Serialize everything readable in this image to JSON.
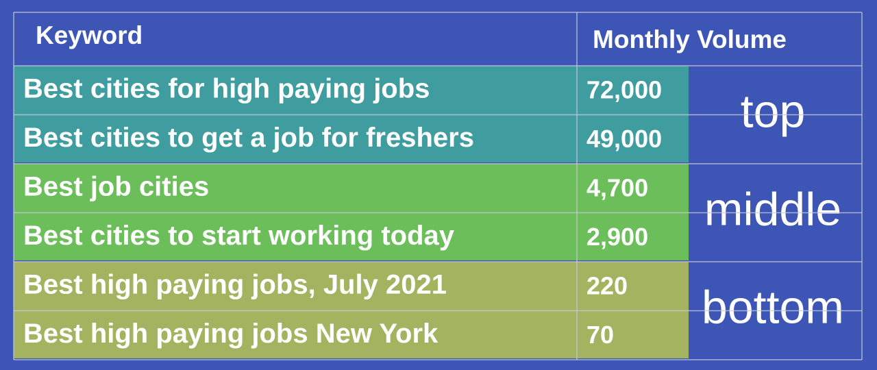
{
  "table": {
    "header": [
      "Keyword",
      "Monthly Volume"
    ],
    "groups": [
      {
        "label": "top",
        "rows": [
          [
            "Best cities for high paying jobs",
            "72,000"
          ],
          [
            "Best cities to get a job for freshers",
            "49,000"
          ]
        ]
      },
      {
        "label": "middle",
        "rows": [
          [
            "Best job cities",
            "4,700"
          ],
          [
            "Best cities to start working today",
            "2,900"
          ]
        ]
      },
      {
        "label": "bottom",
        "rows": [
          [
            "Best high paying jobs, July 2021",
            "220"
          ],
          [
            "Best high paying jobs New York",
            "70"
          ]
        ]
      }
    ]
  }
}
